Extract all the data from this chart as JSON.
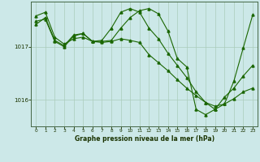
{
  "bg_color": "#cce8e8",
  "grid_color": "#aaccbb",
  "line_color": "#1a6600",
  "xlabel": "Graphe pression niveau de la mer (hPa)",
  "yticks": [
    1016,
    1017
  ],
  "xticks": [
    0,
    1,
    2,
    3,
    4,
    5,
    6,
    7,
    8,
    9,
    10,
    11,
    12,
    13,
    14,
    15,
    16,
    17,
    18,
    19,
    20,
    21,
    22,
    23
  ],
  "xlim": [
    -0.5,
    23.5
  ],
  "ylim": [
    1015.5,
    1017.85
  ],
  "series1": [
    1017.58,
    1017.65,
    1017.18,
    1017.05,
    1017.15,
    1017.18,
    1017.1,
    1017.08,
    1017.1,
    1017.15,
    1017.12,
    1017.08,
    1016.85,
    1016.7,
    1016.55,
    1016.38,
    1016.22,
    1016.08,
    1015.95,
    1015.88,
    1015.92,
    1016.02,
    1016.15,
    1016.22
  ],
  "series2": [
    1017.42,
    1017.55,
    1017.12,
    1017.02,
    1017.22,
    1017.25,
    1017.1,
    1017.12,
    1017.35,
    1017.65,
    1017.72,
    1017.65,
    1017.35,
    1017.15,
    1016.88,
    1016.65,
    1016.42,
    1016.15,
    1015.95,
    1015.82,
    1016.05,
    1016.22,
    1016.45,
    1016.65
  ],
  "series3": [
    1017.48,
    1017.52,
    1017.1,
    1017.0,
    1017.2,
    1017.25,
    1017.1,
    1017.1,
    1017.12,
    1017.35,
    1017.55,
    1017.68,
    1017.72,
    1017.62,
    1017.3,
    1016.78,
    1016.62,
    1015.82,
    1015.72,
    1015.82,
    1015.92,
    1016.35,
    1016.98,
    1017.6
  ]
}
